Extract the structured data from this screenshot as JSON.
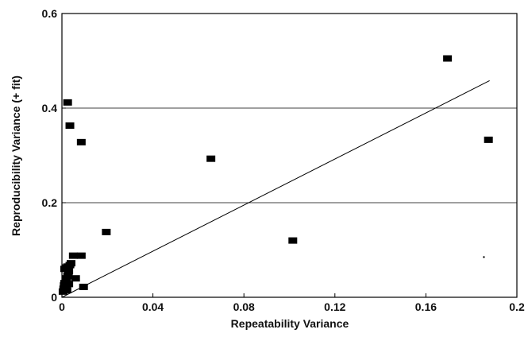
{
  "chart_data": {
    "type": "scatter",
    "xlabel": "Repeatability Variance",
    "ylabel": "Reproducibility Variance (+ fit)",
    "xlim": [
      0,
      0.2
    ],
    "ylim": [
      0,
      0.6
    ],
    "xticks": [
      0,
      0.04,
      0.08,
      0.12,
      0.16,
      0.2
    ],
    "xtick_labels": [
      "0",
      "0.04",
      "0.08",
      "0.12",
      "0.16",
      "0.2"
    ],
    "yticks": [
      0,
      0.2,
      0.4,
      0.6
    ],
    "ytick_labels": [
      "0",
      "0.2",
      "0.4",
      "0.6"
    ],
    "grid": {
      "horizontal": true,
      "vertical": false
    },
    "marker": "filled-square",
    "marker_color": "#000000",
    "line_color": "#000000",
    "grid_color": "#000000",
    "series": [
      {
        "points": [
          {
            "x": 0.0005,
            "y": 0.012
          },
          {
            "x": 0.0008,
            "y": 0.018
          },
          {
            "x": 0.001,
            "y": 0.025
          },
          {
            "x": 0.0012,
            "y": 0.03
          },
          {
            "x": 0.0015,
            "y": 0.022
          },
          {
            "x": 0.0018,
            "y": 0.035
          },
          {
            "x": 0.002,
            "y": 0.04
          },
          {
            "x": 0.0022,
            "y": 0.015
          },
          {
            "x": 0.0025,
            "y": 0.045
          },
          {
            "x": 0.0028,
            "y": 0.05
          },
          {
            "x": 0.003,
            "y": 0.055
          },
          {
            "x": 0.0012,
            "y": 0.06
          },
          {
            "x": 0.0018,
            "y": 0.063
          },
          {
            "x": 0.0025,
            "y": 0.065
          },
          {
            "x": 0.003,
            "y": 0.028
          },
          {
            "x": 0.0035,
            "y": 0.068
          },
          {
            "x": 0.004,
            "y": 0.072
          },
          {
            "x": 0.005,
            "y": 0.088
          },
          {
            "x": 0.006,
            "y": 0.04
          },
          {
            "x": 0.0085,
            "y": 0.088
          },
          {
            "x": 0.0095,
            "y": 0.022
          },
          {
            "x": 0.0025,
            "y": 0.412
          },
          {
            "x": 0.0035,
            "y": 0.363
          },
          {
            "x": 0.0085,
            "y": 0.328
          },
          {
            "x": 0.0195,
            "y": 0.138
          },
          {
            "x": 0.0655,
            "y": 0.293
          },
          {
            "x": 0.1015,
            "y": 0.12
          },
          {
            "x": 0.1695,
            "y": 0.505
          },
          {
            "x": 0.1875,
            "y": 0.333
          }
        ]
      }
    ],
    "fit_line": {
      "x": [
        0,
        0.188
      ],
      "y": [
        0,
        0.458
      ]
    },
    "isolated_dot": {
      "x": 0.1855,
      "y": 0.085
    }
  }
}
